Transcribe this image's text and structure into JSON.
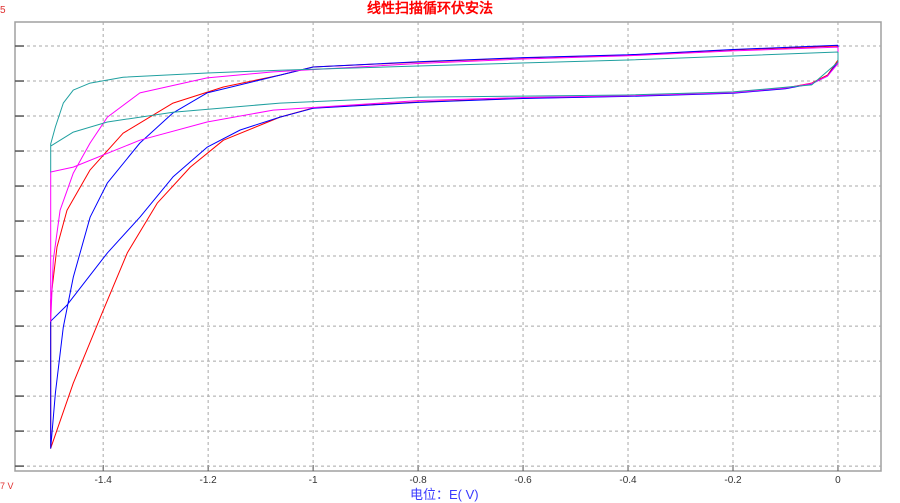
{
  "chart_data": {
    "type": "line",
    "title": "线性扫描循环伏安法",
    "xlabel": "电位：E( V)",
    "ylabel": "",
    "cropped_label_fragments": {
      "top_left": "5",
      "bottom_left": "7 V"
    },
    "xlim": [
      -1.568,
      0.082
    ],
    "ylim": [
      -12.14,
      0.686
    ],
    "x_ticks": [
      -1.4,
      -1.2,
      -1,
      -0.8,
      -0.6,
      -0.4,
      -0.2,
      0
    ],
    "x_tick_labels": [
      "-1.4",
      "-1.2",
      "-1",
      "-0.8",
      "-0.6",
      "-0.4",
      "-0.2",
      "0"
    ],
    "y_ticks": [
      0,
      -1,
      -2,
      -3,
      -4,
      -5,
      -6,
      -7,
      -8,
      -9,
      -10,
      -11,
      -12
    ],
    "y_units_note": "y tick labels cropped; values in gridline steps",
    "grid": true,
    "series": [
      {
        "color": "#ff0000",
        "forward": [
          [
            0,
            0
          ],
          [
            -0.2,
            -0.11
          ],
          [
            -0.4,
            -0.26
          ],
          [
            -0.6,
            -0.34
          ],
          [
            -0.8,
            -0.46
          ],
          [
            -1.0,
            -0.6
          ],
          [
            -1.063,
            -0.83
          ],
          [
            -1.171,
            -1.17
          ],
          [
            -1.267,
            -1.63
          ],
          [
            -1.362,
            -2.49
          ],
          [
            -1.425,
            -3.54
          ],
          [
            -1.469,
            -4.69
          ],
          [
            -1.488,
            -5.74
          ],
          [
            -1.5,
            -7.26
          ],
          [
            -1.5,
            -11.49
          ]
        ],
        "reverse": [
          [
            -1.5,
            -11.49
          ],
          [
            -1.457,
            -9.63
          ],
          [
            -1.402,
            -7.63
          ],
          [
            -1.354,
            -5.91
          ],
          [
            -1.297,
            -4.49
          ],
          [
            -1.234,
            -3.46
          ],
          [
            -1.171,
            -2.69
          ],
          [
            -1.063,
            -2.03
          ],
          [
            -1.0,
            -1.77
          ],
          [
            -0.8,
            -1.6
          ],
          [
            -0.6,
            -1.49
          ],
          [
            -0.4,
            -1.43
          ],
          [
            -0.2,
            -1.34
          ],
          [
            -0.1,
            -1.2
          ],
          [
            -0.05,
            -1.06
          ],
          [
            -0.02,
            -0.83
          ],
          [
            0,
            -0.4
          ],
          [
            0,
            0
          ]
        ]
      },
      {
        "color": "#0000ff",
        "forward": [
          [
            0,
            0.02
          ],
          [
            -0.2,
            -0.1
          ],
          [
            -0.4,
            -0.25
          ],
          [
            -0.6,
            -0.33
          ],
          [
            -0.8,
            -0.45
          ],
          [
            -1.0,
            -0.6
          ],
          [
            -1.063,
            -0.83
          ],
          [
            -1.202,
            -1.34
          ],
          [
            -1.267,
            -1.91
          ],
          [
            -1.33,
            -2.77
          ],
          [
            -1.392,
            -3.91
          ],
          [
            -1.425,
            -4.89
          ],
          [
            -1.457,
            -6.6
          ],
          [
            -1.476,
            -8.03
          ],
          [
            -1.491,
            -9.91
          ],
          [
            -1.5,
            -11.49
          ],
          [
            -1.5,
            -7.86
          ]
        ],
        "reverse": [
          [
            -1.5,
            -7.86
          ],
          [
            -1.469,
            -7.4
          ],
          [
            -1.392,
            -5.91
          ],
          [
            -1.33,
            -4.89
          ],
          [
            -1.267,
            -3.74
          ],
          [
            -1.202,
            -2.89
          ],
          [
            -1.139,
            -2.4
          ],
          [
            -1.063,
            -2.03
          ],
          [
            -1.0,
            -1.78
          ],
          [
            -0.8,
            -1.61
          ],
          [
            -0.6,
            -1.5
          ],
          [
            -0.4,
            -1.44
          ],
          [
            -0.2,
            -1.35
          ],
          [
            -0.1,
            -1.22
          ],
          [
            -0.05,
            -1.08
          ],
          [
            -0.02,
            -0.86
          ],
          [
            0,
            -0.45
          ],
          [
            0,
            0.02
          ]
        ]
      },
      {
        "color": "#ff00ff",
        "forward": [
          [
            0,
            -0.03
          ],
          [
            -0.2,
            -0.14
          ],
          [
            -0.4,
            -0.28
          ],
          [
            -0.6,
            -0.37
          ],
          [
            -0.8,
            -0.5
          ],
          [
            -1.076,
            -0.74
          ],
          [
            -1.202,
            -0.91
          ],
          [
            -1.33,
            -1.34
          ],
          [
            -1.392,
            -2.03
          ],
          [
            -1.425,
            -2.77
          ],
          [
            -1.457,
            -3.63
          ],
          [
            -1.482,
            -4.69
          ],
          [
            -1.495,
            -6.11
          ],
          [
            -1.5,
            -7.86
          ],
          [
            -1.5,
            -3.6
          ]
        ],
        "reverse": [
          [
            -1.5,
            -3.6
          ],
          [
            -1.457,
            -3.46
          ],
          [
            -1.33,
            -2.69
          ],
          [
            -1.202,
            -2.17
          ],
          [
            -1.076,
            -1.83
          ],
          [
            -0.8,
            -1.56
          ],
          [
            -0.6,
            -1.47
          ],
          [
            -0.4,
            -1.42
          ],
          [
            -0.2,
            -1.33
          ],
          [
            -0.1,
            -1.2
          ],
          [
            -0.05,
            -1.07
          ],
          [
            -0.02,
            -0.86
          ],
          [
            0,
            -0.5
          ],
          [
            0,
            -0.03
          ]
        ]
      },
      {
        "color": "#20a0a0",
        "forward": [
          [
            0,
            -0.17
          ],
          [
            -0.4,
            -0.4
          ],
          [
            -0.8,
            -0.57
          ],
          [
            -1.063,
            -0.69
          ],
          [
            -1.202,
            -0.77
          ],
          [
            -1.362,
            -0.89
          ],
          [
            -1.425,
            -1.06
          ],
          [
            -1.457,
            -1.26
          ],
          [
            -1.476,
            -1.63
          ],
          [
            -1.491,
            -2.31
          ],
          [
            -1.5,
            -2.8
          ],
          [
            -1.5,
            -3.6
          ]
        ],
        "reverse": [
          [
            -1.5,
            -3.6
          ],
          [
            -1.5,
            -2.86
          ],
          [
            -1.457,
            -2.46
          ],
          [
            -1.392,
            -2.17
          ],
          [
            -1.267,
            -1.89
          ],
          [
            -1.063,
            -1.63
          ],
          [
            -0.8,
            -1.46
          ],
          [
            -0.6,
            -1.43
          ],
          [
            -0.4,
            -1.4
          ],
          [
            -0.2,
            -1.31
          ],
          [
            -0.05,
            -1.11
          ],
          [
            0,
            -0.46
          ],
          [
            0,
            -0.17
          ]
        ]
      }
    ]
  }
}
